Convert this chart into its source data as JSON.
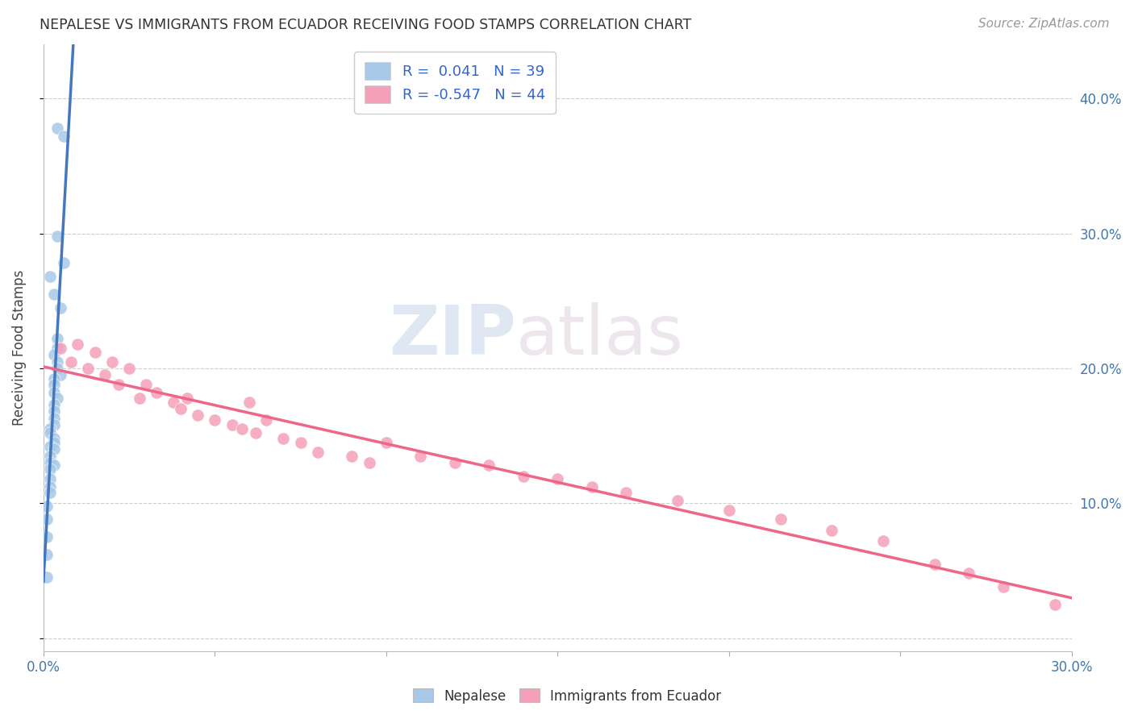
{
  "title": "NEPALESE VS IMMIGRANTS FROM ECUADOR RECEIVING FOOD STAMPS CORRELATION CHART",
  "source": "Source: ZipAtlas.com",
  "ylabel": "Receiving Food Stamps",
  "right_yticks": [
    "40.0%",
    "30.0%",
    "20.0%",
    "10.0%"
  ],
  "right_ytick_vals": [
    0.4,
    0.3,
    0.2,
    0.1
  ],
  "xlim": [
    0.0,
    0.3
  ],
  "ylim": [
    -0.01,
    0.44
  ],
  "legend1_r": "0.041",
  "legend1_n": "39",
  "legend2_r": "-0.547",
  "legend2_n": "44",
  "color_blue": "#a8c8e8",
  "color_pink": "#f4a0b8",
  "line_blue": "#4477bb",
  "line_pink": "#ee6688",
  "watermark_zip": "ZIP",
  "watermark_atlas": "atlas",
  "nepalese_x": [
    0.004,
    0.006,
    0.004,
    0.006,
    0.002,
    0.003,
    0.005,
    0.004,
    0.004,
    0.003,
    0.004,
    0.004,
    0.005,
    0.003,
    0.003,
    0.003,
    0.004,
    0.003,
    0.003,
    0.003,
    0.003,
    0.002,
    0.002,
    0.003,
    0.003,
    0.002,
    0.003,
    0.002,
    0.002,
    0.003,
    0.002,
    0.002,
    0.002,
    0.002,
    0.001,
    0.001,
    0.001,
    0.001,
    0.001
  ],
  "nepalese_y": [
    0.378,
    0.372,
    0.298,
    0.278,
    0.268,
    0.255,
    0.245,
    0.222,
    0.215,
    0.21,
    0.205,
    0.2,
    0.195,
    0.192,
    0.188,
    0.182,
    0.178,
    0.173,
    0.168,
    0.163,
    0.158,
    0.155,
    0.152,
    0.148,
    0.145,
    0.142,
    0.14,
    0.135,
    0.13,
    0.128,
    0.125,
    0.118,
    0.112,
    0.108,
    0.098,
    0.088,
    0.075,
    0.062,
    0.045
  ],
  "ecuador_x": [
    0.005,
    0.008,
    0.01,
    0.013,
    0.015,
    0.018,
    0.02,
    0.022,
    0.025,
    0.028,
    0.03,
    0.033,
    0.038,
    0.04,
    0.042,
    0.045,
    0.05,
    0.055,
    0.058,
    0.06,
    0.062,
    0.065,
    0.07,
    0.075,
    0.08,
    0.09,
    0.095,
    0.1,
    0.11,
    0.12,
    0.13,
    0.14,
    0.15,
    0.16,
    0.17,
    0.185,
    0.2,
    0.215,
    0.23,
    0.245,
    0.26,
    0.27,
    0.28,
    0.295
  ],
  "ecuador_y": [
    0.215,
    0.205,
    0.218,
    0.2,
    0.212,
    0.195,
    0.205,
    0.188,
    0.2,
    0.178,
    0.188,
    0.182,
    0.175,
    0.17,
    0.178,
    0.165,
    0.162,
    0.158,
    0.155,
    0.175,
    0.152,
    0.162,
    0.148,
    0.145,
    0.138,
    0.135,
    0.13,
    0.145,
    0.135,
    0.13,
    0.128,
    0.12,
    0.118,
    0.112,
    0.108,
    0.102,
    0.095,
    0.088,
    0.08,
    0.072,
    0.055,
    0.048,
    0.038,
    0.025
  ]
}
